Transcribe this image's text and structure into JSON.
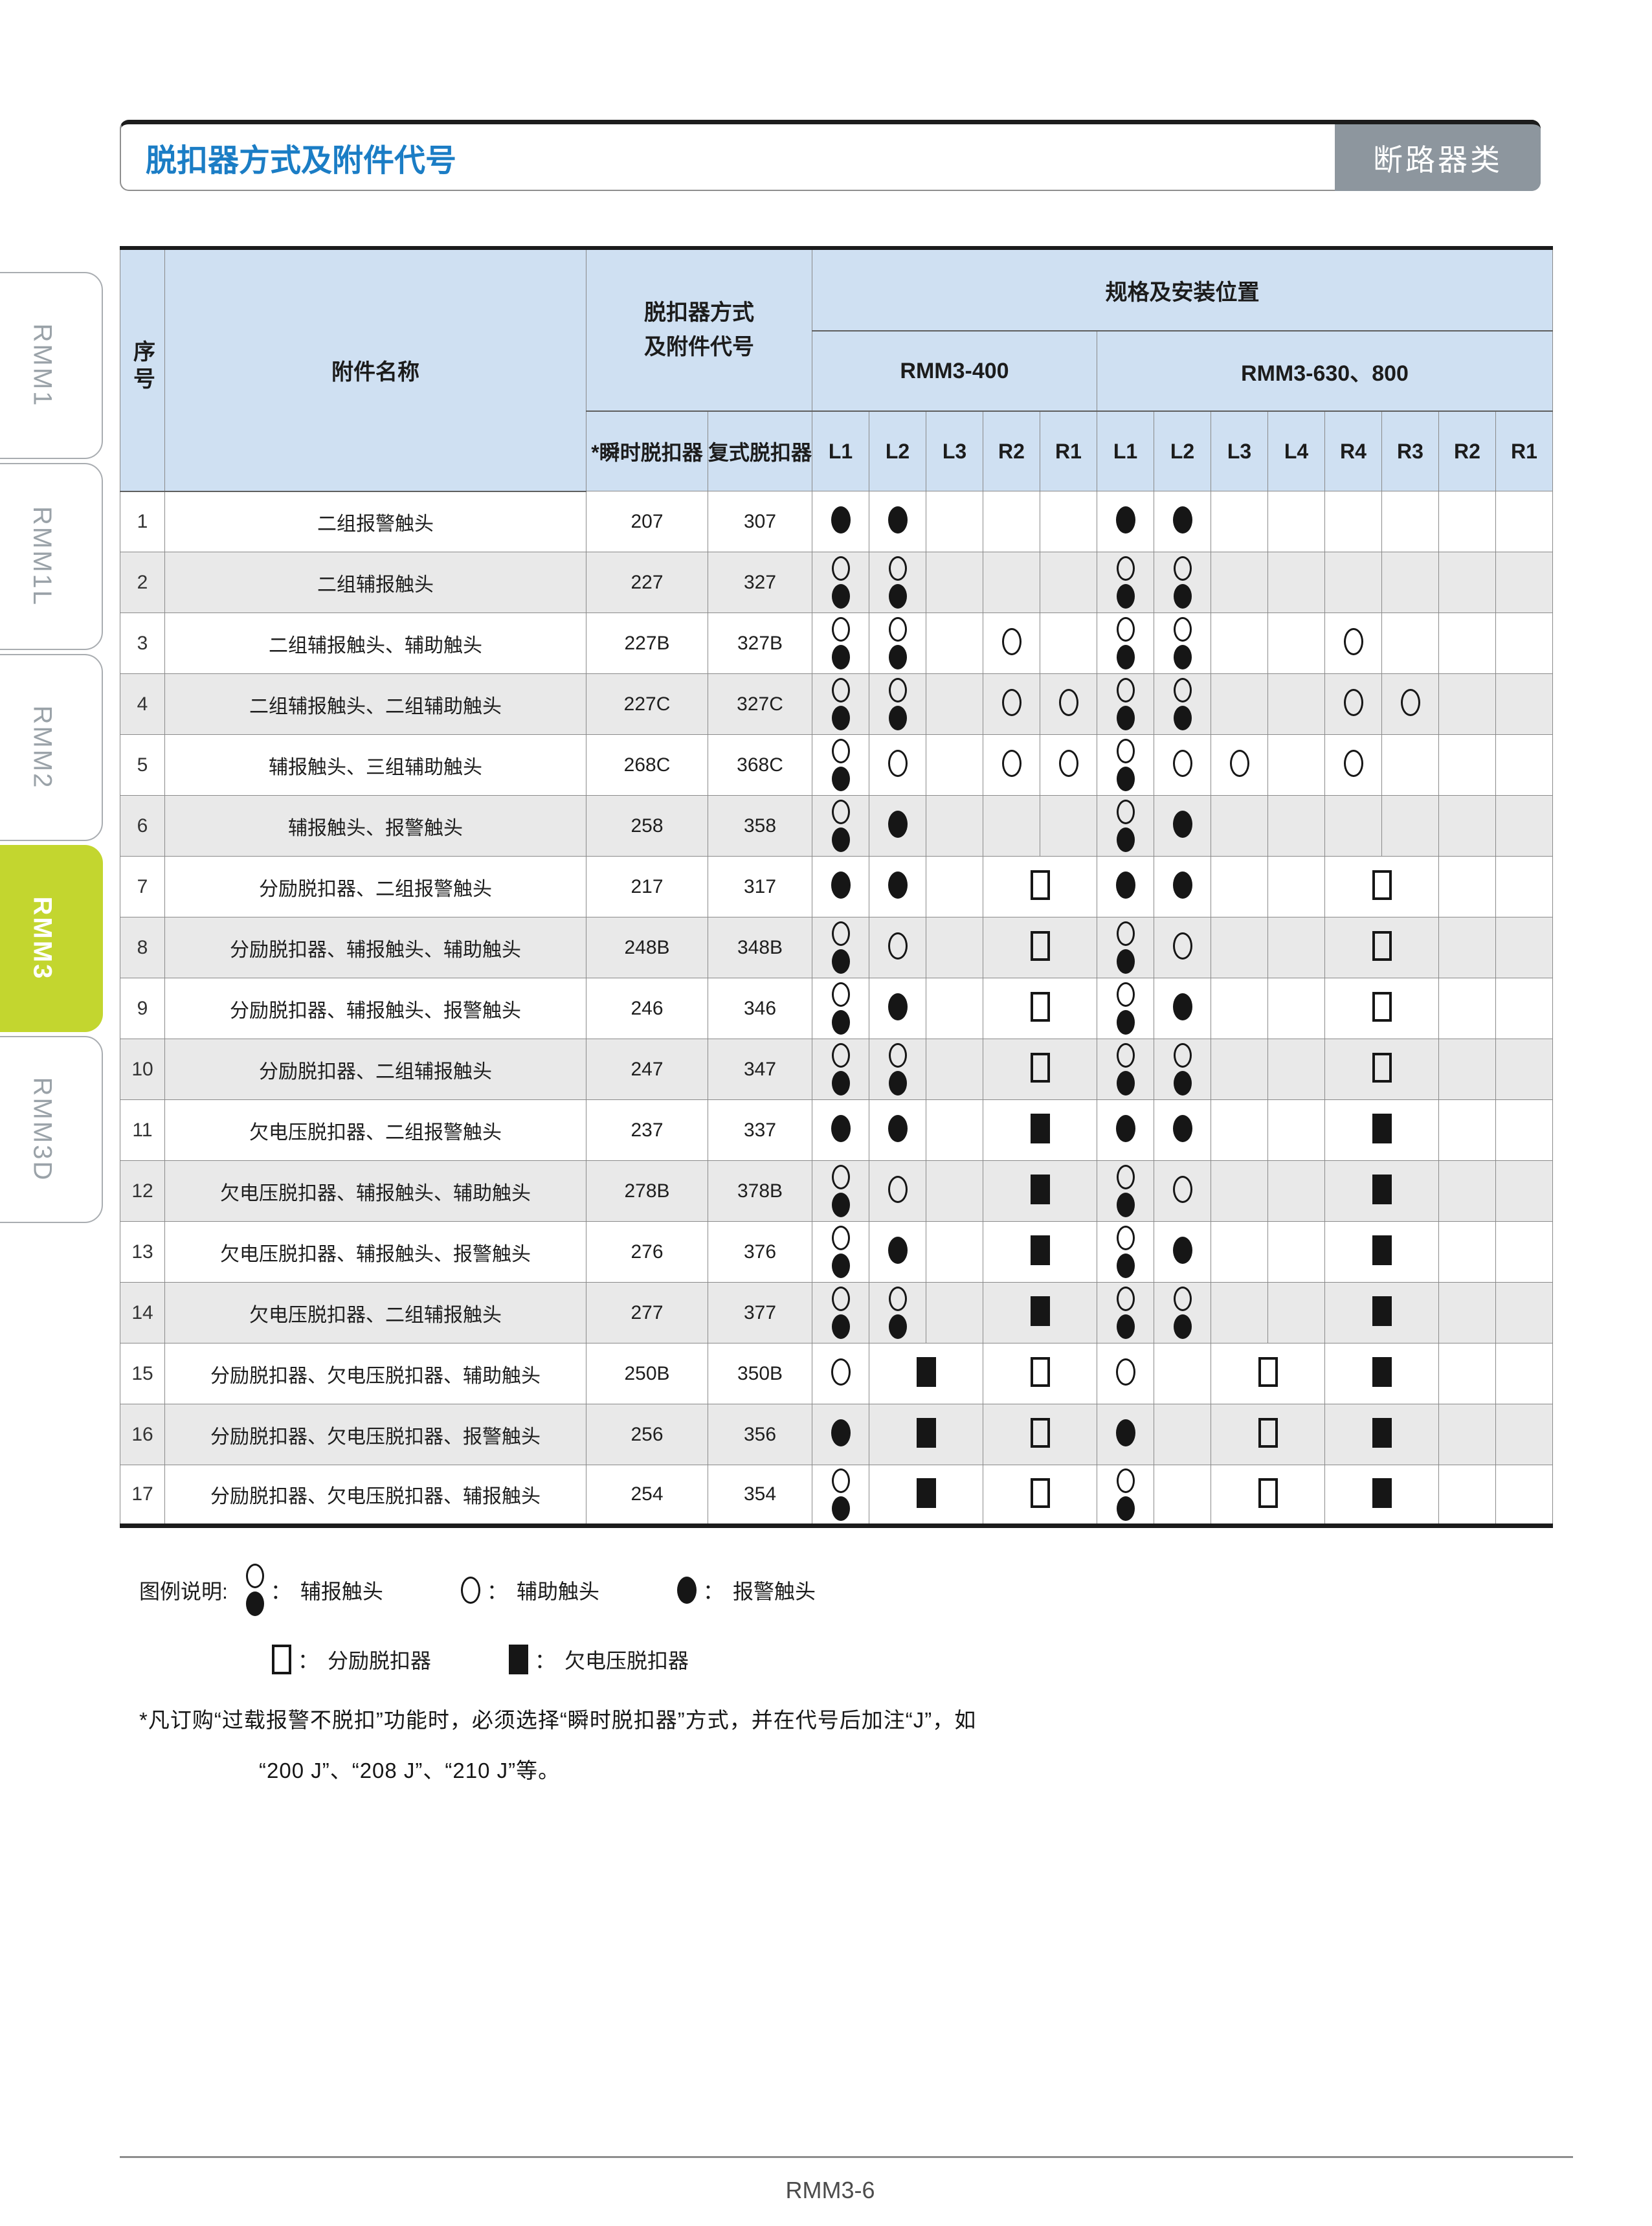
{
  "page": {
    "title": "脱扣器方式及附件代号",
    "category_badge": "断路器类",
    "footer": "RMM3-6",
    "colors": {
      "title_blue": "#1b7dc5",
      "badge_gray": "#8d969e",
      "header_blue": "#cfe0f2",
      "stripe_gray": "#e9e9e9",
      "active_tab_green": "#c3d62f"
    }
  },
  "sidebar": {
    "tabs": [
      {
        "label": "RMM1",
        "active": false
      },
      {
        "label": "RMM1L",
        "active": false
      },
      {
        "label": "RMM2",
        "active": false
      },
      {
        "label": "RMM3",
        "active": true
      },
      {
        "label": "RMM3D",
        "active": false
      }
    ]
  },
  "table": {
    "headers": {
      "col_seq": "序号",
      "col_name": "附件名称",
      "col_method_line1": "脱扣器方式",
      "col_method_line2": "及附件代号",
      "col_spec": "规格及安装位置",
      "group_400": "RMM3-400",
      "group_630": "RMM3-630、800",
      "col_instant": "*瞬时脱扣器",
      "col_compound": "复式脱扣器",
      "positions_400": [
        "L1",
        "L2",
        "L3",
        "R2",
        "R1"
      ],
      "positions_630": [
        "L1",
        "L2",
        "L3",
        "L4",
        "R4",
        "R3",
        "R2",
        "R1"
      ]
    },
    "symbol_key": {
      "ab": "aux-alarm-contact",
      "o": "auxiliary-contact",
      "b": "alarm-contact",
      "sq": "shunt-release",
      "fs": "undervoltage-release"
    },
    "rows": [
      {
        "no": "1",
        "name": "二组报警触头",
        "instant": "207",
        "compound": "307",
        "cells": [
          [
            1,
            "b"
          ],
          [
            1,
            "b"
          ],
          [
            1,
            ""
          ],
          [
            1,
            ""
          ],
          [
            1,
            ""
          ],
          [
            1,
            "b"
          ],
          [
            1,
            "b"
          ],
          [
            1,
            ""
          ],
          [
            1,
            ""
          ],
          [
            1,
            ""
          ],
          [
            1,
            ""
          ],
          [
            1,
            ""
          ],
          [
            1,
            ""
          ]
        ]
      },
      {
        "no": "2",
        "name": "二组辅报触头",
        "instant": "227",
        "compound": "327",
        "cells": [
          [
            1,
            "ab"
          ],
          [
            1,
            "ab"
          ],
          [
            1,
            ""
          ],
          [
            1,
            ""
          ],
          [
            1,
            ""
          ],
          [
            1,
            "ab"
          ],
          [
            1,
            "ab"
          ],
          [
            1,
            ""
          ],
          [
            1,
            ""
          ],
          [
            1,
            ""
          ],
          [
            1,
            ""
          ],
          [
            1,
            ""
          ],
          [
            1,
            ""
          ]
        ]
      },
      {
        "no": "3",
        "name": "二组辅报触头、辅助触头",
        "instant": "227B",
        "compound": "327B",
        "cells": [
          [
            1,
            "ab"
          ],
          [
            1,
            "ab"
          ],
          [
            1,
            ""
          ],
          [
            1,
            "o"
          ],
          [
            1,
            ""
          ],
          [
            1,
            "ab"
          ],
          [
            1,
            "ab"
          ],
          [
            1,
            ""
          ],
          [
            1,
            ""
          ],
          [
            1,
            "o"
          ],
          [
            1,
            ""
          ],
          [
            1,
            ""
          ],
          [
            1,
            ""
          ]
        ]
      },
      {
        "no": "4",
        "name": "二组辅报触头、二组辅助触头",
        "instant": "227C",
        "compound": "327C",
        "cells": [
          [
            1,
            "ab"
          ],
          [
            1,
            "ab"
          ],
          [
            1,
            ""
          ],
          [
            1,
            "o"
          ],
          [
            1,
            "o"
          ],
          [
            1,
            "ab"
          ],
          [
            1,
            "ab"
          ],
          [
            1,
            ""
          ],
          [
            1,
            ""
          ],
          [
            1,
            "o"
          ],
          [
            1,
            "o"
          ],
          [
            1,
            ""
          ],
          [
            1,
            ""
          ]
        ]
      },
      {
        "no": "5",
        "name": "辅报触头、三组辅助触头",
        "instant": "268C",
        "compound": "368C",
        "cells": [
          [
            1,
            "ab"
          ],
          [
            1,
            "o"
          ],
          [
            1,
            ""
          ],
          [
            1,
            "o"
          ],
          [
            1,
            "o"
          ],
          [
            1,
            "ab"
          ],
          [
            1,
            "o"
          ],
          [
            1,
            "o"
          ],
          [
            1,
            ""
          ],
          [
            1,
            "o"
          ],
          [
            1,
            ""
          ],
          [
            1,
            ""
          ],
          [
            1,
            ""
          ]
        ]
      },
      {
        "no": "6",
        "name": "辅报触头、报警触头",
        "instant": "258",
        "compound": "358",
        "cells": [
          [
            1,
            "ab"
          ],
          [
            1,
            "b"
          ],
          [
            1,
            ""
          ],
          [
            1,
            ""
          ],
          [
            1,
            ""
          ],
          [
            1,
            "ab"
          ],
          [
            1,
            "b"
          ],
          [
            1,
            ""
          ],
          [
            1,
            ""
          ],
          [
            1,
            ""
          ],
          [
            1,
            ""
          ],
          [
            1,
            ""
          ],
          [
            1,
            ""
          ]
        ]
      },
      {
        "no": "7",
        "name": "分励脱扣器、二组报警触头",
        "instant": "217",
        "compound": "317",
        "cells": [
          [
            1,
            "b"
          ],
          [
            1,
            "b"
          ],
          [
            1,
            ""
          ],
          [
            2,
            "sq"
          ],
          [
            1,
            "b"
          ],
          [
            1,
            "b"
          ],
          [
            1,
            ""
          ],
          [
            1,
            ""
          ],
          [
            2,
            "sq"
          ],
          [
            1,
            ""
          ],
          [
            1,
            ""
          ]
        ]
      },
      {
        "no": "8",
        "name": "分励脱扣器、辅报触头、辅助触头",
        "instant": "248B",
        "compound": "348B",
        "cells": [
          [
            1,
            "ab"
          ],
          [
            1,
            "o"
          ],
          [
            1,
            ""
          ],
          [
            2,
            "sq"
          ],
          [
            1,
            "ab"
          ],
          [
            1,
            "o"
          ],
          [
            1,
            ""
          ],
          [
            1,
            ""
          ],
          [
            2,
            "sq"
          ],
          [
            1,
            ""
          ],
          [
            1,
            ""
          ]
        ]
      },
      {
        "no": "9",
        "name": "分励脱扣器、辅报触头、报警触头",
        "instant": "246",
        "compound": "346",
        "cells": [
          [
            1,
            "ab"
          ],
          [
            1,
            "b"
          ],
          [
            1,
            ""
          ],
          [
            2,
            "sq"
          ],
          [
            1,
            "ab"
          ],
          [
            1,
            "b"
          ],
          [
            1,
            ""
          ],
          [
            1,
            ""
          ],
          [
            2,
            "sq"
          ],
          [
            1,
            ""
          ],
          [
            1,
            ""
          ]
        ]
      },
      {
        "no": "10",
        "name": "分励脱扣器、二组辅报触头",
        "instant": "247",
        "compound": "347",
        "cells": [
          [
            1,
            "ab"
          ],
          [
            1,
            "ab"
          ],
          [
            1,
            ""
          ],
          [
            2,
            "sq"
          ],
          [
            1,
            "ab"
          ],
          [
            1,
            "ab"
          ],
          [
            1,
            ""
          ],
          [
            1,
            ""
          ],
          [
            2,
            "sq"
          ],
          [
            1,
            ""
          ],
          [
            1,
            ""
          ]
        ]
      },
      {
        "no": "11",
        "name": "欠电压脱扣器、二组报警触头",
        "instant": "237",
        "compound": "337",
        "cells": [
          [
            1,
            "b"
          ],
          [
            1,
            "b"
          ],
          [
            1,
            ""
          ],
          [
            2,
            "fs"
          ],
          [
            1,
            "b"
          ],
          [
            1,
            "b"
          ],
          [
            1,
            ""
          ],
          [
            1,
            ""
          ],
          [
            2,
            "fs"
          ],
          [
            1,
            ""
          ],
          [
            1,
            ""
          ]
        ]
      },
      {
        "no": "12",
        "name": "欠电压脱扣器、辅报触头、辅助触头",
        "instant": "278B",
        "compound": "378B",
        "cells": [
          [
            1,
            "ab"
          ],
          [
            1,
            "o"
          ],
          [
            1,
            ""
          ],
          [
            2,
            "fs"
          ],
          [
            1,
            "ab"
          ],
          [
            1,
            "o"
          ],
          [
            1,
            ""
          ],
          [
            1,
            ""
          ],
          [
            2,
            "fs"
          ],
          [
            1,
            ""
          ],
          [
            1,
            ""
          ]
        ]
      },
      {
        "no": "13",
        "name": "欠电压脱扣器、辅报触头、报警触头",
        "instant": "276",
        "compound": "376",
        "cells": [
          [
            1,
            "ab"
          ],
          [
            1,
            "b"
          ],
          [
            1,
            ""
          ],
          [
            2,
            "fs"
          ],
          [
            1,
            "ab"
          ],
          [
            1,
            "b"
          ],
          [
            1,
            ""
          ],
          [
            1,
            ""
          ],
          [
            2,
            "fs"
          ],
          [
            1,
            ""
          ],
          [
            1,
            ""
          ]
        ]
      },
      {
        "no": "14",
        "name": "欠电压脱扣器、二组辅报触头",
        "instant": "277",
        "compound": "377",
        "cells": [
          [
            1,
            "ab"
          ],
          [
            1,
            "ab"
          ],
          [
            1,
            ""
          ],
          [
            2,
            "fs"
          ],
          [
            1,
            "ab"
          ],
          [
            1,
            "ab"
          ],
          [
            1,
            ""
          ],
          [
            1,
            ""
          ],
          [
            2,
            "fs"
          ],
          [
            1,
            ""
          ],
          [
            1,
            ""
          ]
        ]
      },
      {
        "no": "15",
        "name": "分励脱扣器、欠电压脱扣器、辅助触头",
        "instant": "250B",
        "compound": "350B",
        "cells": [
          [
            1,
            "o"
          ],
          [
            2,
            "fs"
          ],
          [
            2,
            "sq"
          ],
          [
            1,
            "o"
          ],
          [
            1,
            ""
          ],
          [
            2,
            "sq"
          ],
          [
            2,
            "fs"
          ],
          [
            1,
            ""
          ],
          [
            1,
            ""
          ]
        ]
      },
      {
        "no": "16",
        "name": "分励脱扣器、欠电压脱扣器、报警触头",
        "instant": "256",
        "compound": "356",
        "cells": [
          [
            1,
            "b"
          ],
          [
            2,
            "fs"
          ],
          [
            2,
            "sq"
          ],
          [
            1,
            "b"
          ],
          [
            1,
            ""
          ],
          [
            2,
            "sq"
          ],
          [
            2,
            "fs"
          ],
          [
            1,
            ""
          ],
          [
            1,
            ""
          ]
        ]
      },
      {
        "no": "17",
        "name": "分励脱扣器、欠电压脱扣器、辅报触头",
        "instant": "254",
        "compound": "354",
        "cells": [
          [
            1,
            "ab"
          ],
          [
            2,
            "fs"
          ],
          [
            2,
            "sq"
          ],
          [
            1,
            "ab"
          ],
          [
            1,
            ""
          ],
          [
            2,
            "sq"
          ],
          [
            2,
            "fs"
          ],
          [
            1,
            ""
          ],
          [
            1,
            ""
          ]
        ]
      }
    ]
  },
  "legend": {
    "title": "图例说明:",
    "colon": "：",
    "row1": [
      {
        "sym": "ab",
        "label": "辅报触头"
      },
      {
        "sym": "o",
        "label": "辅助触头"
      },
      {
        "sym": "b",
        "label": "报警触头"
      }
    ],
    "row2": [
      {
        "sym": "sq",
        "label": "分励脱扣器"
      },
      {
        "sym": "fs",
        "label": "欠电压脱扣器"
      }
    ]
  },
  "footnote": {
    "line1": "*凡订购“过载报警不脱扣”功能时，必须选择“瞬时脱扣器”方式，并在代号后加注“J”，如",
    "line2": "“200 J”、“208 J”、“210 J”等。"
  }
}
